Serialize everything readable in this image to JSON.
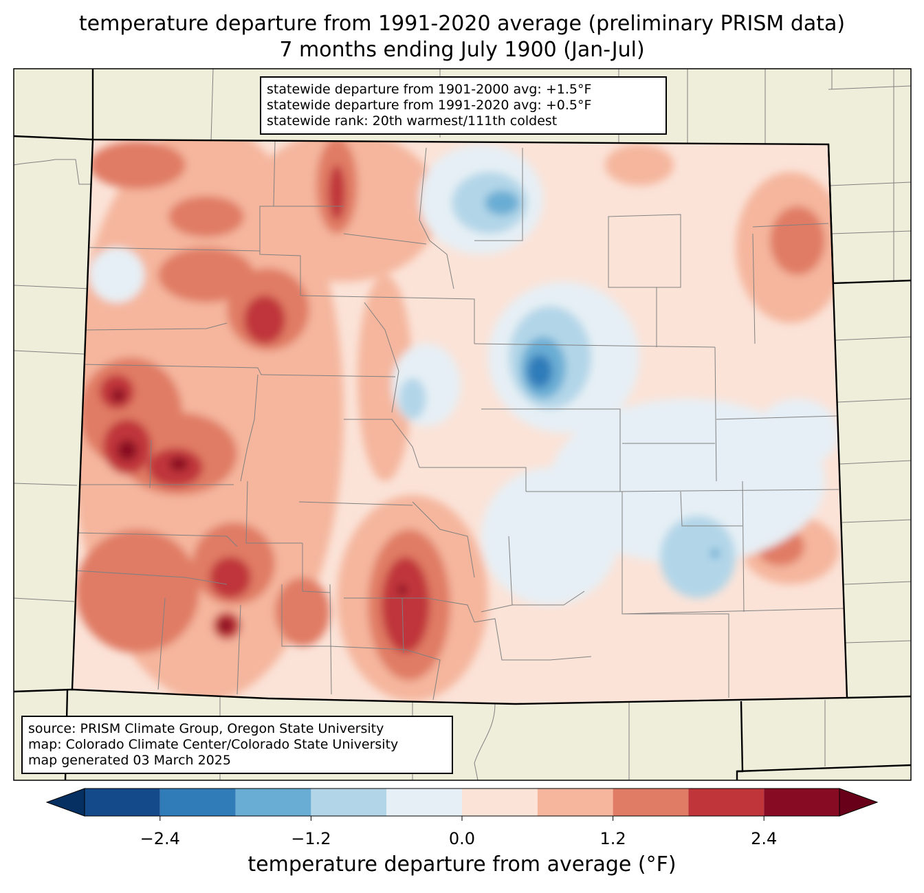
{
  "title": {
    "line1": "temperature departure from 1991-2020 average (preliminary PRISM data)",
    "line2": "7 months ending July 1900 (Jan-Jul)"
  },
  "stats": {
    "line1": "statewide departure from 1901-2000 avg: +1.5°F",
    "line2": "statewide departure from 1991-2020 avg: +0.5°F",
    "line3": "statewide rank: 20th warmest/111th coldest"
  },
  "source": {
    "line1": "source: PRISM Climate Group, Oregon State University",
    "line2": "map: Colorado Climate Center/Colorado State University",
    "line3": "map generated 03 March 2025"
  },
  "colorbar": {
    "label": "temperature departure from average (°F)",
    "ticks": [
      "−2.4",
      "−1.2",
      "0.0",
      "1.2",
      "2.4"
    ],
    "tick_values": [
      -2.4,
      -1.2,
      0.0,
      1.2,
      2.4
    ],
    "levels": [
      -3.0,
      -2.4,
      -1.8,
      -1.2,
      -0.6,
      0.0,
      0.6,
      1.2,
      1.8,
      2.4,
      3.0
    ],
    "colors": [
      "#053061",
      "#154a8a",
      "#2f7cb9",
      "#6aadd4",
      "#b2d6e8",
      "#e6eff5",
      "#fbe3d8",
      "#f5b69d",
      "#e07c65",
      "#c0353a",
      "#880b24",
      "#670018"
    ]
  },
  "map_colors": {
    "land": "#efeedb",
    "state_border": "#000000",
    "county_border": "#808080"
  }
}
